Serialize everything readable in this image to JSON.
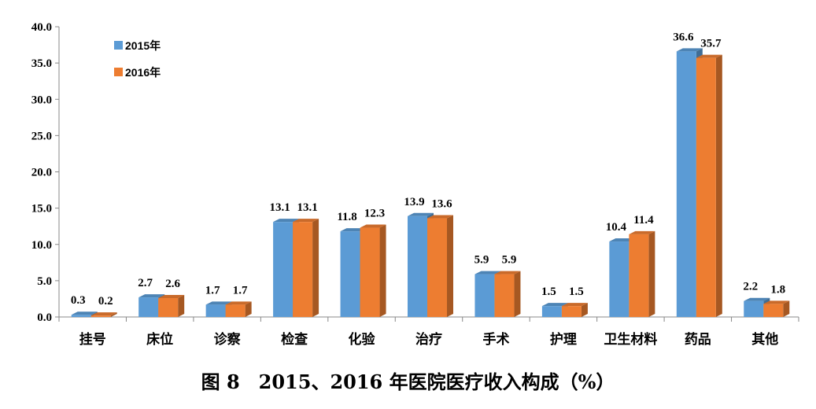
{
  "chart_data": {
    "type": "bar",
    "categories": [
      "挂号",
      "床位",
      "诊察",
      "检查",
      "化验",
      "治疗",
      "手术",
      "护理",
      "卫生材料",
      "药品",
      "其他"
    ],
    "series": [
      {
        "name": "2015年",
        "values": [
          0.3,
          2.7,
          1.7,
          13.1,
          11.8,
          13.9,
          5.9,
          1.5,
          10.4,
          36.6,
          2.2
        ]
      },
      {
        "name": "2016年",
        "values": [
          0.2,
          2.6,
          1.7,
          13.1,
          12.3,
          13.6,
          5.9,
          1.5,
          11.4,
          35.7,
          1.8
        ]
      }
    ],
    "data_labels": [
      [
        "0.3",
        "2.7",
        "1.7",
        "13.1",
        "11.8",
        "13.9",
        "5.9",
        "1.5",
        "10.4",
        "36.6",
        "2.2"
      ],
      [
        "0.2",
        "2.6",
        "1.7",
        "13.1",
        "12.3",
        "13.6",
        "5.9",
        "1.5",
        "11.4",
        "35.7",
        "1.8"
      ]
    ],
    "yticks": [
      "0.0",
      "5.0",
      "10.0",
      "15.0",
      "20.0",
      "25.0",
      "30.0",
      "35.0",
      "40.0"
    ],
    "ylim": [
      0,
      40
    ],
    "grid": false,
    "legend_position": "top-left",
    "colors": {
      "2015年": "#5b9bd5",
      "2016年": "#ed7d31"
    },
    "caption": "图 8　2015、2016 年医院医疗收入构成（%）"
  }
}
